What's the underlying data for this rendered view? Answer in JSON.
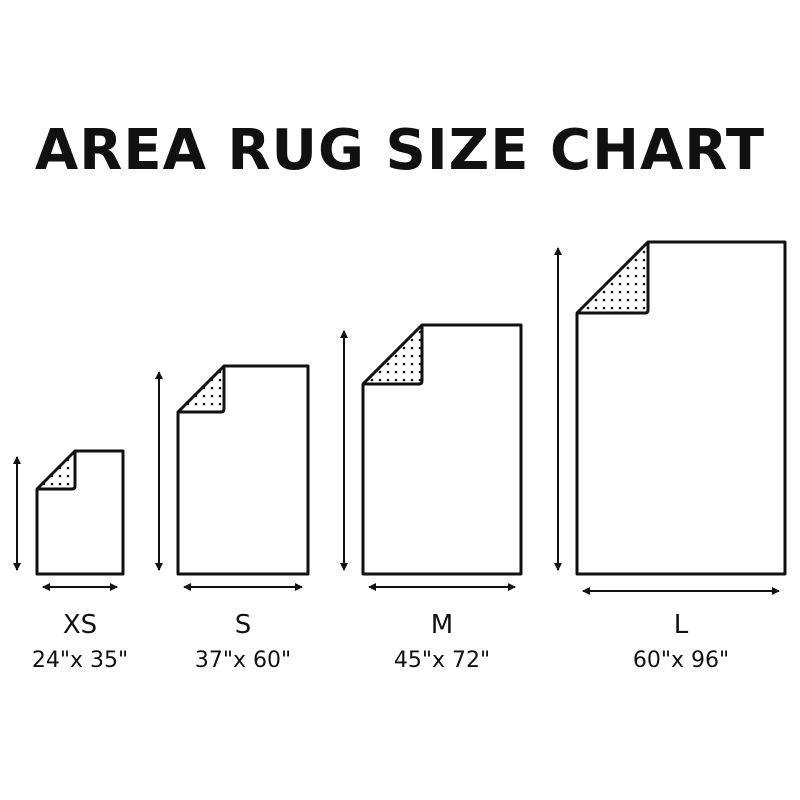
{
  "title": "AREA RUG SIZE CHART",
  "colors": {
    "stroke": "#111111",
    "background": "#ffffff"
  },
  "rugs": [
    {
      "size": "XS",
      "dimensions": "24\"x 35\"",
      "width_in": 24,
      "length_in": 35
    },
    {
      "size": "S",
      "dimensions": "37\"x 60\"",
      "width_in": 37,
      "length_in": 60
    },
    {
      "size": "M",
      "dimensions": "45\"x 72\"",
      "width_in": 45,
      "length_in": 72
    },
    {
      "size": "L",
      "dimensions": "60\"x 96\"",
      "width_in": 60,
      "length_in": 96
    }
  ]
}
